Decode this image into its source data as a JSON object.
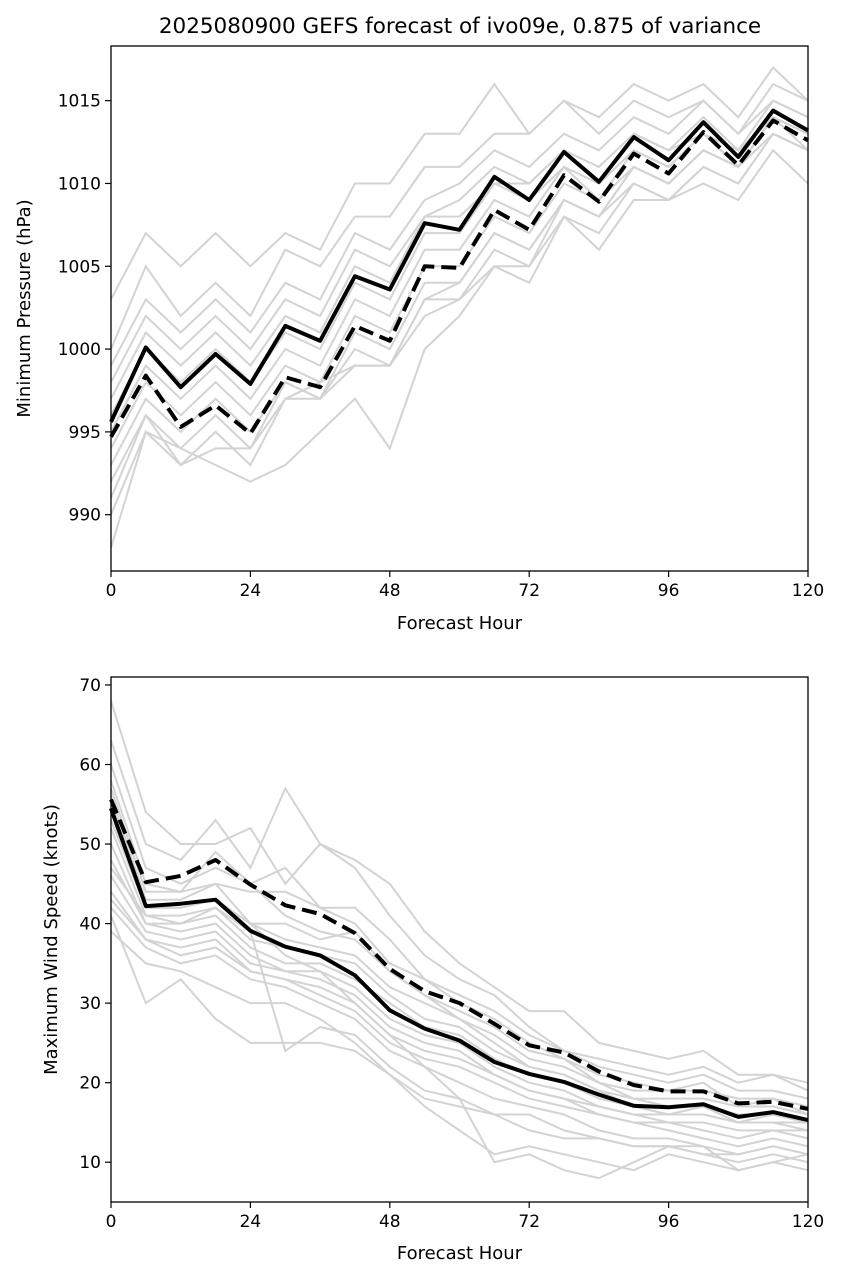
{
  "colors": {
    "member": "#d3d3d3",
    "mean": "#000000",
    "background": "#ffffff"
  },
  "chart_data": [
    {
      "type": "line",
      "title": "2025080900 GEFS forecast of ivo09e, 0.875 of variance",
      "xlabel": "Forecast Hour",
      "ylabel": "Minimum Pressure (hPa)",
      "xlim": [
        0,
        120
      ],
      "ylim": [
        986.6,
        1018.3
      ],
      "xticks": [
        0,
        24,
        48,
        72,
        96,
        120
      ],
      "yticks": [
        990,
        995,
        1000,
        1005,
        1010,
        1015
      ],
      "grid": false,
      "legend": "none",
      "x": [
        0,
        6,
        12,
        18,
        24,
        30,
        36,
        42,
        48,
        54,
        60,
        66,
        72,
        78,
        84,
        90,
        96,
        102,
        108,
        114,
        120
      ],
      "members": [
        [
          1003,
          1007,
          1005,
          1007,
          1005,
          1007,
          1006,
          1010,
          1010,
          1013,
          1013,
          1016,
          1013,
          1015,
          1014,
          1016,
          1015,
          1016,
          1014,
          1017,
          1015
        ],
        [
          1000,
          1005,
          1002,
          1004,
          1002,
          1006,
          1005,
          1008,
          1008,
          1011,
          1011,
          1013,
          1013,
          1015,
          1013,
          1015,
          1014,
          1015,
          1013,
          1016,
          1015
        ],
        [
          999,
          1003,
          1001,
          1003,
          1001,
          1004,
          1003,
          1007,
          1006,
          1009,
          1010,
          1012,
          1011,
          1013,
          1012,
          1014,
          1013,
          1015,
          1013,
          1015,
          1014
        ],
        [
          998,
          1002,
          1000,
          1002,
          1000,
          1003,
          1002,
          1006,
          1005,
          1008,
          1009,
          1011,
          1010,
          1012,
          1011,
          1013,
          1012,
          1014,
          1012,
          1015,
          1014
        ],
        [
          997,
          1001,
          999,
          1001,
          999,
          1002,
          1001,
          1005,
          1004,
          1008,
          1008,
          1010,
          1010,
          1012,
          1010,
          1013,
          1012,
          1013,
          1012,
          1014,
          1013
        ],
        [
          996,
          1000,
          998,
          1000,
          998,
          1001,
          1000,
          1004,
          1003,
          1007,
          1007,
          1010,
          1009,
          1011,
          1010,
          1012,
          1011,
          1013,
          1011,
          1014,
          1013
        ],
        [
          995,
          999,
          997,
          999,
          997,
          1000,
          999,
          1003,
          1002,
          1006,
          1006,
          1009,
          1008,
          1011,
          1009,
          1012,
          1011,
          1013,
          1011,
          1014,
          1013
        ],
        [
          994,
          998,
          996,
          998,
          996,
          999,
          998,
          1002,
          1001,
          1005,
          1005,
          1008,
          1007,
          1010,
          1009,
          1011,
          1010,
          1012,
          1011,
          1014,
          1012
        ],
        [
          993,
          997,
          995,
          997,
          995,
          998,
          997,
          1001,
          1000,
          1004,
          1004,
          1007,
          1006,
          1009,
          1008,
          1011,
          1010,
          1012,
          1011,
          1013,
          1012
        ],
        [
          992,
          996,
          994,
          996,
          994,
          998,
          997,
          1000,
          999,
          1003,
          1003,
          1006,
          1005,
          1009,
          1008,
          1010,
          1009,
          1011,
          1010,
          1013,
          1012
        ],
        [
          991,
          996,
          993,
          995,
          993,
          997,
          998,
          999,
          999,
          1002,
          1003,
          1005,
          1005,
          1008,
          1006,
          1009,
          1009,
          1010,
          1009,
          1012,
          1010
        ],
        [
          990,
          995,
          994,
          993,
          992,
          993,
          995,
          997,
          994,
          1000,
          1002,
          1005,
          1004,
          1008,
          1007,
          1010,
          1009,
          1011,
          1010,
          1013,
          1012
        ],
        [
          988,
          995,
          993,
          994,
          994,
          997,
          997,
          999,
          999,
          1003,
          1004,
          1007,
          1006,
          1009,
          1008,
          1011,
          1010,
          1012,
          1011,
          1014,
          1013
        ]
      ],
      "series": [
        {
          "style": "solid",
          "values": [
            995.6,
            1000.1,
            997.7,
            999.7,
            997.9,
            1001.4,
            1000.5,
            1004.4,
            1003.6,
            1007.6,
            1007.2,
            1010.4,
            1009.0,
            1011.9,
            1010.1,
            1012.8,
            1011.4,
            1013.7,
            1011.6,
            1014.4,
            1013.2
          ]
        },
        {
          "style": "dashed",
          "values": [
            994.7,
            998.4,
            995.3,
            996.6,
            994.9,
            998.3,
            997.7,
            1001.4,
            1000.5,
            1005.0,
            1004.9,
            1008.4,
            1007.2,
            1010.5,
            1008.9,
            1011.8,
            1010.6,
            1013.1,
            1011.1,
            1013.8,
            1012.6
          ]
        }
      ]
    },
    {
      "type": "line",
      "title": "",
      "xlabel": "Forecast Hour",
      "ylabel": "Maximum Wind Speed (knots)",
      "xlim": [
        0,
        120
      ],
      "ylim": [
        5,
        71
      ],
      "xticks": [
        0,
        24,
        48,
        72,
        96,
        120
      ],
      "yticks": [
        10,
        20,
        30,
        40,
        50,
        60,
        70
      ],
      "grid": false,
      "legend": "none",
      "x": [
        0,
        6,
        12,
        18,
        24,
        30,
        36,
        42,
        48,
        54,
        60,
        66,
        72,
        78,
        84,
        90,
        96,
        102,
        108,
        114,
        120
      ],
      "members": [
        [
          68,
          54,
          50,
          50,
          52,
          45,
          50,
          48,
          45,
          39,
          35,
          32,
          29,
          29,
          25,
          24,
          23,
          24,
          21,
          21,
          20
        ],
        [
          63,
          50,
          48,
          53,
          47,
          57,
          50,
          47,
          41,
          36,
          33,
          31,
          27,
          24,
          23,
          22,
          21,
          22,
          20,
          21,
          19
        ],
        [
          60,
          47,
          45,
          47,
          45,
          47,
          42,
          42,
          38,
          33,
          31,
          29,
          26,
          24,
          22,
          21,
          20,
          21,
          19,
          19,
          18
        ],
        [
          58,
          45,
          44,
          45,
          44,
          44,
          42,
          40,
          35,
          33,
          30,
          28,
          25,
          23,
          21,
          20,
          19,
          19,
          18,
          18,
          17
        ],
        [
          56,
          43,
          43,
          45,
          40,
          40,
          38,
          39,
          34,
          31,
          29,
          27,
          24,
          23,
          20,
          19,
          19,
          20,
          17,
          18,
          16
        ],
        [
          54,
          42,
          42,
          43,
          40,
          38,
          37,
          36,
          32,
          30,
          28,
          26,
          23,
          22,
          20,
          18,
          18,
          18,
          17,
          17,
          16
        ],
        [
          52,
          41,
          41,
          42,
          38,
          37,
          36,
          35,
          31,
          28,
          27,
          24,
          22,
          21,
          19,
          18,
          17,
          17,
          16,
          16,
          15
        ],
        [
          50,
          40,
          40,
          41,
          37,
          35,
          35,
          33,
          30,
          27,
          26,
          23,
          21,
          20,
          18,
          17,
          16,
          16,
          15,
          15,
          15
        ],
        [
          48,
          40,
          39,
          40,
          36,
          34,
          34,
          32,
          28,
          26,
          25,
          22,
          20,
          19,
          17,
          16,
          16,
          16,
          15,
          15,
          14
        ],
        [
          46,
          39,
          38,
          39,
          35,
          34,
          33,
          31,
          27,
          25,
          24,
          21,
          19,
          18,
          17,
          16,
          15,
          15,
          14,
          14,
          14
        ],
        [
          44,
          38,
          37,
          38,
          34,
          33,
          32,
          30,
          26,
          24,
          23,
          21,
          19,
          18,
          16,
          15,
          15,
          14,
          13,
          14,
          13
        ],
        [
          43,
          38,
          36,
          37,
          34,
          33,
          31,
          29,
          25,
          23,
          22,
          20,
          18,
          17,
          16,
          15,
          14,
          13,
          12,
          13,
          12
        ],
        [
          42,
          37,
          35,
          36,
          33,
          32,
          30,
          28,
          24,
          22,
          20,
          18,
          17,
          16,
          14,
          13,
          13,
          12,
          11,
          12,
          11
        ],
        [
          41,
          30,
          33,
          28,
          25,
          25,
          25,
          24,
          21,
          18,
          17,
          16,
          16,
          14,
          13,
          12,
          12,
          11,
          10,
          11,
          10
        ],
        [
          39,
          35,
          34,
          32,
          30,
          30,
          28,
          25,
          21,
          17,
          14,
          11,
          12,
          11,
          10,
          9,
          11,
          10,
          9,
          10,
          9
        ],
        [
          53,
          42,
          42,
          43,
          40,
          36,
          34,
          30,
          26,
          22,
          18,
          10,
          11,
          9,
          8,
          10,
          12,
          12,
          9,
          10,
          11
        ],
        [
          57,
          44,
          44,
          49,
          45,
          41,
          39,
          38,
          34,
          31,
          28,
          25,
          22,
          21,
          19,
          17,
          16,
          17,
          15,
          16,
          15
        ],
        [
          47,
          41,
          40,
          42,
          39,
          24,
          27,
          26,
          22,
          19,
          18,
          16,
          14,
          13,
          13,
          12,
          12,
          11,
          11,
          12,
          11
        ]
      ],
      "series": [
        {
          "style": "solid",
          "values": [
            54.5,
            42.2,
            42.5,
            43.0,
            39.1,
            37.1,
            36.0,
            33.5,
            29.1,
            26.8,
            25.3,
            22.6,
            21.1,
            20.1,
            18.5,
            17.1,
            16.9,
            17.3,
            15.7,
            16.3,
            15.3
          ]
        },
        {
          "style": "dashed",
          "values": [
            55.6,
            45.2,
            46.0,
            48.0,
            44.9,
            42.3,
            41.2,
            38.8,
            34.3,
            31.5,
            30.0,
            27.4,
            24.7,
            23.8,
            21.4,
            19.7,
            18.9,
            18.9,
            17.4,
            17.6,
            16.7
          ]
        }
      ]
    }
  ]
}
